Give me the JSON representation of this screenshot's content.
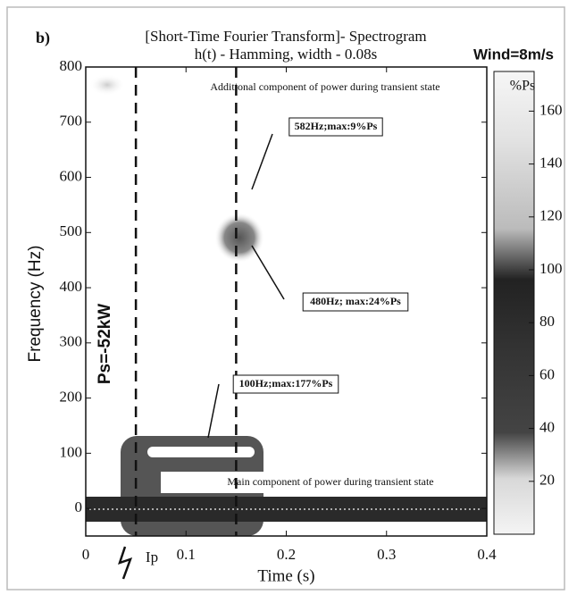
{
  "chart_data": {
    "type": "spectrogram",
    "panel_label": "b)",
    "title": "[Short-Time Fourier Transform]- Spectrogram",
    "subtitle": "h(t) - Hamming, width - 0.08s",
    "corner_label": "Wind=8m/s",
    "x_label": "Time (s)",
    "y_label": "Frequency (Hz)",
    "xlim": [
      0,
      0.4
    ],
    "xticks": [
      0,
      0.1,
      0.2,
      0.3,
      0.4
    ],
    "ylim": [
      -50,
      800
    ],
    "yticks": [
      0,
      100,
      200,
      300,
      400,
      500,
      600,
      700,
      800
    ],
    "colorbar": {
      "label": "%Ps",
      "lim": [
        0,
        175
      ],
      "ticks": [
        20,
        40,
        60,
        80,
        100,
        120,
        140,
        160
      ]
    },
    "vlines": [
      0.05,
      0.15
    ],
    "annotations": [
      "Additional component of power during transient state",
      "582Hz;max:9%Ps",
      "480Hz; max:24%Ps",
      "100Hz;max:177%Ps",
      "Main component of power during transient state",
      "Ps=-52kW",
      "Ip"
    ]
  }
}
